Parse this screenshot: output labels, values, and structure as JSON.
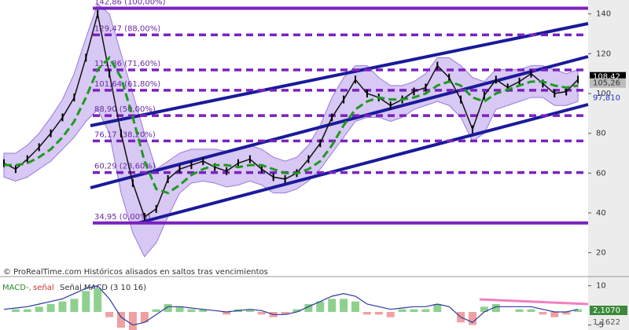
{
  "chart_data": {
    "type": "line",
    "copyright": "© ProRealTime.com Históricos alisados en saltos tras vencimientos",
    "price": [
      65,
      62,
      67,
      73,
      80,
      88,
      98,
      118,
      140,
      110,
      80,
      55,
      38,
      42,
      57,
      62,
      64,
      66,
      63,
      61,
      65,
      67,
      62,
      58,
      57,
      60,
      67,
      75,
      88,
      97,
      107,
      100,
      98,
      94,
      97,
      101,
      103,
      114,
      108,
      97,
      82,
      99,
      107,
      103,
      106,
      110,
      105,
      100,
      101,
      107
    ],
    "upper_band": [
      70,
      70,
      74,
      80,
      88,
      97,
      110,
      128,
      145,
      140,
      120,
      100,
      80,
      62,
      66,
      70,
      72,
      72,
      72,
      71,
      72,
      74,
      72,
      68,
      66,
      68,
      74,
      84,
      98,
      108,
      114,
      114,
      108,
      104,
      104,
      106,
      110,
      118,
      118,
      114,
      108,
      106,
      112,
      112,
      112,
      114,
      114,
      112,
      110,
      112
    ],
    "lower_band": [
      58,
      56,
      58,
      62,
      66,
      72,
      78,
      86,
      92,
      80,
      50,
      30,
      18,
      25,
      38,
      50,
      55,
      56,
      55,
      53,
      54,
      56,
      54,
      50,
      50,
      52,
      56,
      62,
      70,
      78,
      86,
      88,
      88,
      86,
      88,
      92,
      94,
      96,
      94,
      88,
      76,
      80,
      92,
      94,
      96,
      98,
      98,
      94,
      94,
      96
    ],
    "moving_average": [
      64,
      64,
      65,
      68,
      72,
      78,
      86,
      98,
      112,
      118,
      108,
      88,
      66,
      52,
      50,
      54,
      59,
      62,
      64,
      64,
      63,
      64,
      64,
      62,
      60,
      60,
      62,
      66,
      74,
      84,
      92,
      96,
      98,
      97,
      97,
      98,
      100,
      104,
      106,
      104,
      98,
      96,
      100,
      102,
      104,
      106,
      106,
      104,
      103,
      104
    ],
    "ylim": [
      8,
      147
    ],
    "yticks": [
      20,
      40,
      60,
      80,
      100,
      120,
      140
    ],
    "fib_levels": [
      {
        "value": 142.86,
        "label": "142,86 (100,00%)",
        "solid": true
      },
      {
        "value": 129.47,
        "label": "129,47 (88,00%)",
        "solid": false
      },
      {
        "value": 111.86,
        "label": "111,86 (71,60%)",
        "solid": false
      },
      {
        "value": 101.64,
        "label": "101,64 (61,80%)",
        "solid": false
      },
      {
        "value": 88.9,
        "label": "88,90 (50,00%)",
        "solid": false
      },
      {
        "value": 76.17,
        "label": "76,17 (38,20%)",
        "solid": false
      },
      {
        "value": 60.29,
        "label": "60,29 (23,60%)",
        "solid": false
      },
      {
        "value": 34.95,
        "label": "34,95 (0,00%)",
        "solid": true
      }
    ],
    "price_tags": [
      {
        "value": 108.42,
        "label": "108,42"
      },
      {
        "value": 105.26,
        "label": "105,26"
      },
      {
        "value": 97.81,
        "label": "97,810"
      }
    ],
    "macd": {
      "legend": [
        "MACD-,",
        "señal",
        "Señal MACD (3 10 16)"
      ],
      "histogram": [
        0,
        1,
        1,
        2,
        3,
        4,
        5,
        8,
        9,
        -2,
        -6,
        -8,
        -4,
        1,
        3,
        2,
        1,
        1,
        0,
        -1,
        1,
        1,
        -1,
        -2,
        -1,
        1,
        3,
        4,
        5,
        5,
        4,
        -1,
        -1,
        -2,
        1,
        1,
        1,
        3,
        0,
        -4,
        -5,
        2,
        3,
        0,
        1,
        1,
        -1,
        -2,
        -1,
        1
      ],
      "line": [
        1,
        1.5,
        2,
        3,
        4,
        5,
        7,
        9,
        10,
        5,
        -2,
        -5,
        -4,
        -1,
        2,
        2,
        1.5,
        1,
        0.5,
        0,
        0.5,
        1,
        0.5,
        -1,
        -1,
        0,
        2,
        4,
        6,
        7,
        6,
        3,
        2,
        1,
        1.5,
        2,
        2,
        3,
        2,
        -2,
        -4,
        0,
        2,
        2,
        2,
        2,
        1,
        0,
        0,
        1
      ],
      "ylim": [
        -6.9,
        12.6
      ],
      "yticks": [
        10,
        -5
      ],
      "tags": [
        "2,1070",
        "1,1622"
      ]
    }
  }
}
